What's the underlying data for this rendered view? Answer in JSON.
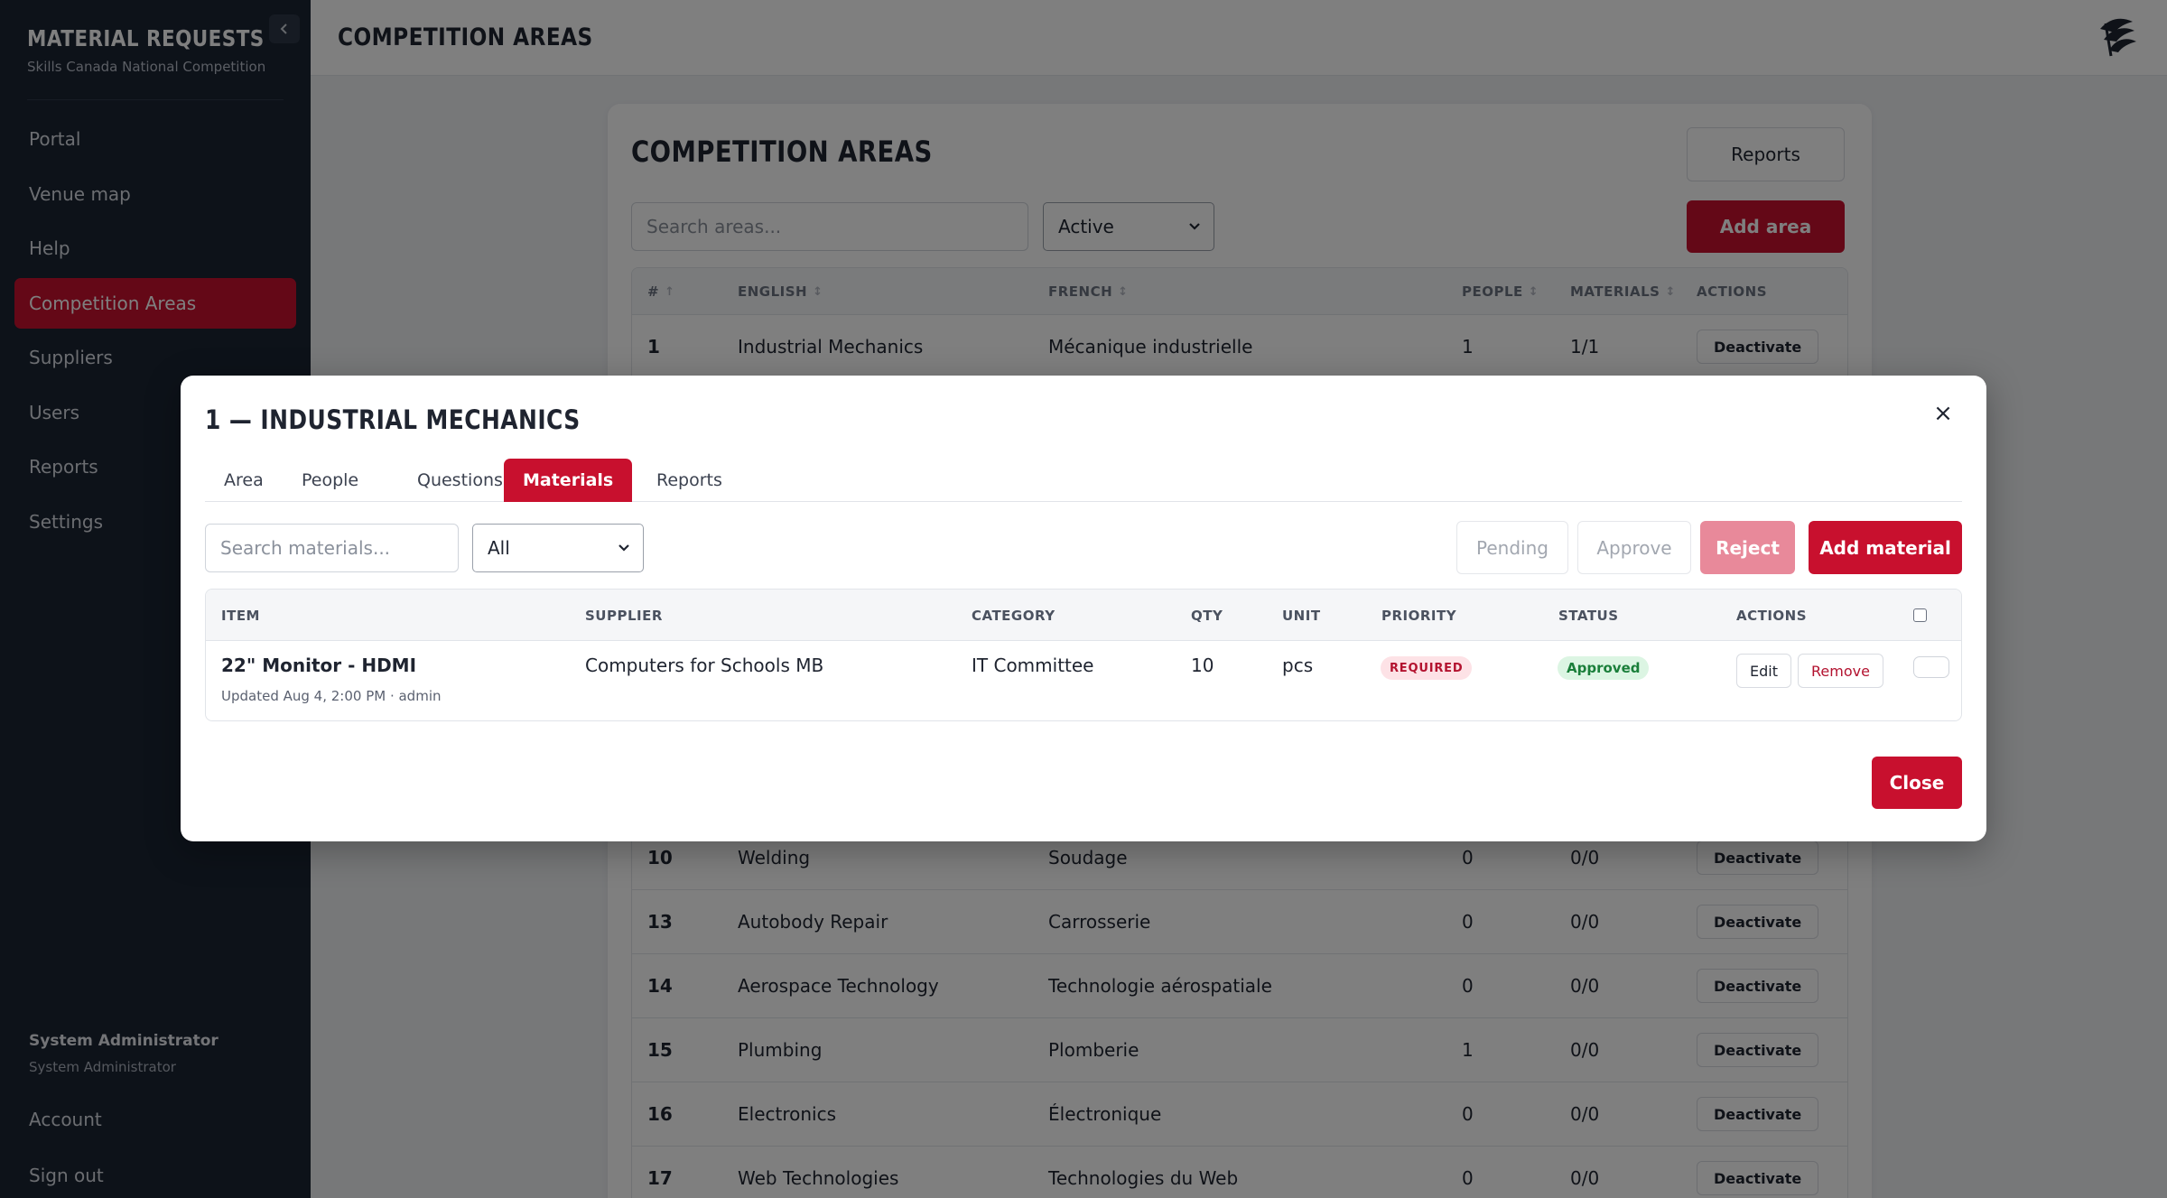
{
  "sidebar": {
    "brand_title": "MATERIAL REQUESTS",
    "brand_subtitle": "Skills Canada National Competition",
    "items": [
      {
        "label": "Portal"
      },
      {
        "label": "Venue map"
      },
      {
        "label": "Help"
      },
      {
        "label": "Competition Areas"
      },
      {
        "label": "Suppliers"
      },
      {
        "label": "Users"
      },
      {
        "label": "Reports"
      },
      {
        "label": "Settings"
      }
    ],
    "active_item": "Competition Areas",
    "user_name": "System Administrator",
    "user_role": "System Administrator",
    "account_label": "Account",
    "signout_label": "Sign out"
  },
  "topbar": {
    "title": "COMPETITION AREAS"
  },
  "main": {
    "title": "COMPETITION AREAS",
    "reports_button": "Reports",
    "add_area_button": "Add area",
    "search_placeholder": "Search areas...",
    "status_filter": "Active",
    "columns": {
      "num": "#",
      "english": "ENGLISH",
      "french": "FRENCH",
      "people": "PEOPLE",
      "materials": "MATERIALS",
      "actions": "ACTIONS"
    },
    "rows": [
      {
        "num": "1",
        "english": "Industrial Mechanics",
        "french": "Mécanique industrielle",
        "people": "1",
        "materials": "1/1",
        "action": "Deactivate"
      },
      {
        "num": "10",
        "english": "Welding",
        "french": "Soudage",
        "people": "0",
        "materials": "0/0",
        "action": "Deactivate"
      },
      {
        "num": "13",
        "english": "Autobody Repair",
        "french": "Carrosserie",
        "people": "0",
        "materials": "0/0",
        "action": "Deactivate"
      },
      {
        "num": "14",
        "english": "Aerospace Technology",
        "french": "Technologie aérospatiale",
        "people": "0",
        "materials": "0/0",
        "action": "Deactivate"
      },
      {
        "num": "15",
        "english": "Plumbing",
        "french": "Plomberie",
        "people": "1",
        "materials": "0/0",
        "action": "Deactivate"
      },
      {
        "num": "16",
        "english": "Electronics",
        "french": "Électronique",
        "people": "0",
        "materials": "0/0",
        "action": "Deactivate"
      },
      {
        "num": "17",
        "english": "Web Technologies",
        "french": "Technologies du Web",
        "people": "0",
        "materials": "0/0",
        "action": "Deactivate"
      }
    ]
  },
  "modal": {
    "title": "1 — INDUSTRIAL MECHANICS",
    "close_x": "×",
    "tabs": [
      {
        "label": "Area"
      },
      {
        "label": "People"
      },
      {
        "label": "Questions"
      },
      {
        "label": "Materials"
      },
      {
        "label": "Reports"
      }
    ],
    "active_tab": "Materials",
    "search_placeholder": "Search materials...",
    "filter_value": "All",
    "pending_button": "Pending",
    "approve_button": "Approve",
    "reject_button": "Reject",
    "add_material_button": "Add material",
    "columns": {
      "item": "ITEM",
      "supplier": "SUPPLIER",
      "category": "CATEGORY",
      "qty": "QTY",
      "unit": "UNIT",
      "priority": "PRIORITY",
      "status": "STATUS",
      "actions": "ACTIONS"
    },
    "materials": [
      {
        "item": "22\" Monitor - HDMI",
        "meta": "Updated Aug 4, 2:00 PM · admin",
        "supplier": "Computers for Schools MB",
        "category": "IT Committee",
        "qty": "10",
        "unit": "pcs",
        "priority": "REQUIRED",
        "status": "Approved",
        "edit": "Edit",
        "remove": "Remove"
      }
    ],
    "close_button": "Close"
  },
  "colors": {
    "accent": "#c8102e",
    "sidebar_bg": "#1b2433",
    "overlay": "rgba(0,0,0,0.5)"
  }
}
